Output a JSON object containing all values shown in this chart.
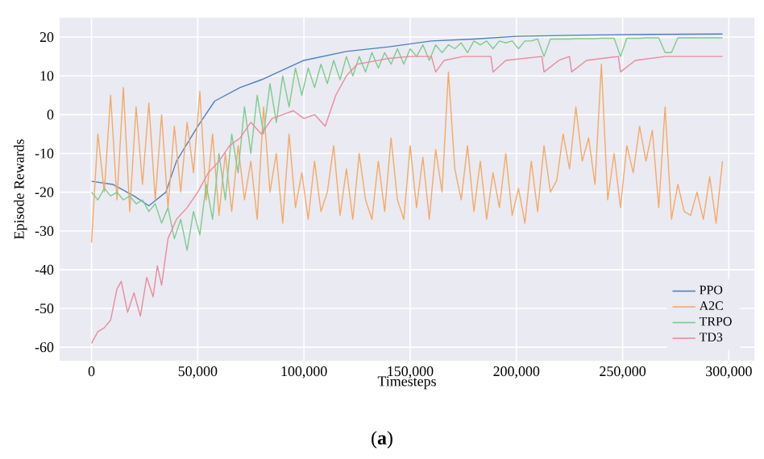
{
  "chart_data": {
    "type": "line",
    "xlabel": "Timesteps",
    "ylabel": "Episode Rewards",
    "annotations": [
      "(**a**)"
    ],
    "xlim": [
      -15000,
      312000
    ],
    "ylim": [
      -63.5,
      25
    ],
    "xticks": [
      {
        "value": 0,
        "label": "0"
      },
      {
        "value": 50000,
        "label": "50,000"
      },
      {
        "value": 100000,
        "label": "100,000"
      },
      {
        "value": 150000,
        "label": "150,000"
      },
      {
        "value": 200000,
        "label": "200,000"
      },
      {
        "value": 250000,
        "label": "250,000"
      },
      {
        "value": 300000,
        "label": "300,000"
      }
    ],
    "yticks": [
      -60,
      -50,
      -40,
      -30,
      -20,
      -10,
      0,
      10,
      20
    ],
    "grid": true,
    "legend": "bottom right",
    "marker": "none",
    "line_style": "solid",
    "x": [
      0,
      3000,
      6000,
      9000,
      12000,
      15000,
      18000,
      21000,
      24000,
      27000,
      30000,
      33000,
      36000,
      39000,
      42000,
      45000,
      48000,
      51000,
      54000,
      57000,
      60000,
      63000,
      66000,
      69000,
      72000,
      75000,
      78000,
      81000,
      84000,
      87000,
      90000,
      93000,
      96000,
      99000,
      102000,
      105000,
      108000,
      111000,
      114000,
      117000,
      120000,
      123000,
      126000,
      129000,
      132000,
      135000,
      138000,
      141000,
      144000,
      147000,
      150000,
      153000,
      156000,
      159000,
      162000,
      165000,
      168000,
      171000,
      174000,
      177000,
      180000,
      183000,
      186000,
      189000,
      192000,
      195000,
      198000,
      201000,
      204000,
      207000,
      210000,
      213000,
      216000,
      219000,
      222000,
      225000,
      228000,
      231000,
      234000,
      237000,
      240000,
      243000,
      246000,
      249000,
      252000,
      255000,
      258000,
      261000,
      264000,
      267000,
      270000,
      273000,
      276000,
      279000,
      282000,
      285000,
      288000,
      291000,
      294000,
      297000
    ],
    "series": [
      {
        "name": "PPO",
        "color": "#4c7fbf",
        "x": [
          0,
          10000,
          20000,
          27000,
          35000,
          40000,
          50000,
          58000,
          70000,
          80000,
          100000,
          120000,
          140000,
          160000,
          180000,
          200000,
          230000,
          260000,
          297000
        ],
        "values": [
          -17.2,
          -18,
          -21,
          -23.5,
          -20,
          -12,
          -3,
          3.5,
          7,
          9,
          14,
          16.3,
          17.5,
          19,
          19.5,
          20.2,
          20.5,
          20.7,
          20.8
        ]
      },
      {
        "name": "A2C",
        "color": "#f5a964",
        "values": [
          -33,
          -5,
          -20,
          5,
          -22,
          7,
          -25,
          2,
          -18,
          3,
          -22,
          0,
          -24,
          -3,
          -20,
          -2,
          -15,
          6,
          -22,
          -5,
          -26,
          -10,
          -25,
          -8,
          -22,
          -12,
          -27,
          2,
          -20,
          -10,
          -28,
          -5,
          -24,
          -15,
          -27,
          -12,
          -25,
          -20,
          -8,
          -26,
          -14,
          -27,
          -10,
          -22,
          -27,
          -12,
          -25,
          -6,
          -22,
          -27,
          -8,
          -24,
          -11,
          -27,
          -9,
          -20,
          11,
          -14,
          -22,
          -8,
          -25,
          -12,
          -27,
          -15,
          -24,
          -10,
          -26,
          -19,
          -28,
          -12,
          -25,
          -8,
          -20,
          -17,
          -5,
          -14,
          2,
          -12,
          -6,
          -18,
          13,
          -22,
          -10,
          -24,
          -8,
          -15,
          -3,
          -12,
          -4,
          -24,
          2,
          -27,
          -18,
          -25,
          -26,
          -20,
          -27,
          -16,
          -28,
          -12
        ]
      },
      {
        "name": "TRPO",
        "color": "#7dcb8c",
        "values": [
          -20,
          -22,
          -19,
          -21,
          -20,
          -22,
          -21,
          -23,
          -22,
          -25,
          -23,
          -28,
          -24,
          -32,
          -27,
          -35,
          -25,
          -31,
          -18,
          -27,
          -10,
          -22,
          -5,
          -15,
          2,
          -10,
          5,
          -5,
          8,
          -2,
          10,
          2,
          12,
          5,
          12,
          7,
          13,
          8,
          14,
          9,
          15,
          10,
          15,
          11,
          16,
          12,
          16,
          13,
          17,
          13,
          17,
          15,
          18,
          14,
          18,
          16,
          18,
          17,
          18.5,
          16,
          19,
          18,
          19,
          17,
          19,
          18.5,
          19,
          17,
          19,
          19,
          19.5,
          15,
          19.5,
          19.5,
          19.5,
          19.5,
          19.6,
          19.6,
          19.6,
          19.6,
          19.7,
          19.7,
          19.7,
          15,
          19.7,
          19.7,
          19.7,
          19.8,
          19.8,
          19.8,
          16,
          16,
          19.8,
          19.8,
          19.8,
          19.8,
          19.8,
          19.8,
          19.8,
          19.8
        ]
      },
      {
        "name": "TD3",
        "color": "#e98b9b",
        "x": [
          0,
          3000,
          6000,
          9000,
          12000,
          14000,
          17000,
          20000,
          23000,
          26000,
          29000,
          31000,
          33000,
          36000,
          40000,
          45000,
          50000,
          55000,
          60000,
          65000,
          70000,
          75000,
          80000,
          85000,
          90000,
          95000,
          100000,
          105000,
          110000,
          115000,
          120000,
          125000,
          130000,
          140000,
          150000,
          160000,
          162000,
          166000,
          175000,
          188000,
          189000,
          195000,
          212000,
          213000,
          220000,
          225000,
          226000,
          233000,
          248000,
          249000,
          256000,
          270000,
          297000
        ],
        "values": [
          -59,
          -56,
          -55,
          -53,
          -45,
          -43,
          -51,
          -46,
          -52,
          -42,
          -47,
          -39,
          -44,
          -32,
          -27,
          -24,
          -20,
          -15,
          -12,
          -8,
          -6,
          -2,
          -5,
          -1,
          0,
          1,
          -1,
          0,
          -3,
          5,
          10,
          13,
          13.5,
          14.5,
          15,
          15,
          11,
          14,
          15,
          15,
          11,
          14,
          15,
          11,
          14,
          15,
          11,
          14,
          15,
          11,
          14,
          15,
          15
        ]
      }
    ]
  }
}
